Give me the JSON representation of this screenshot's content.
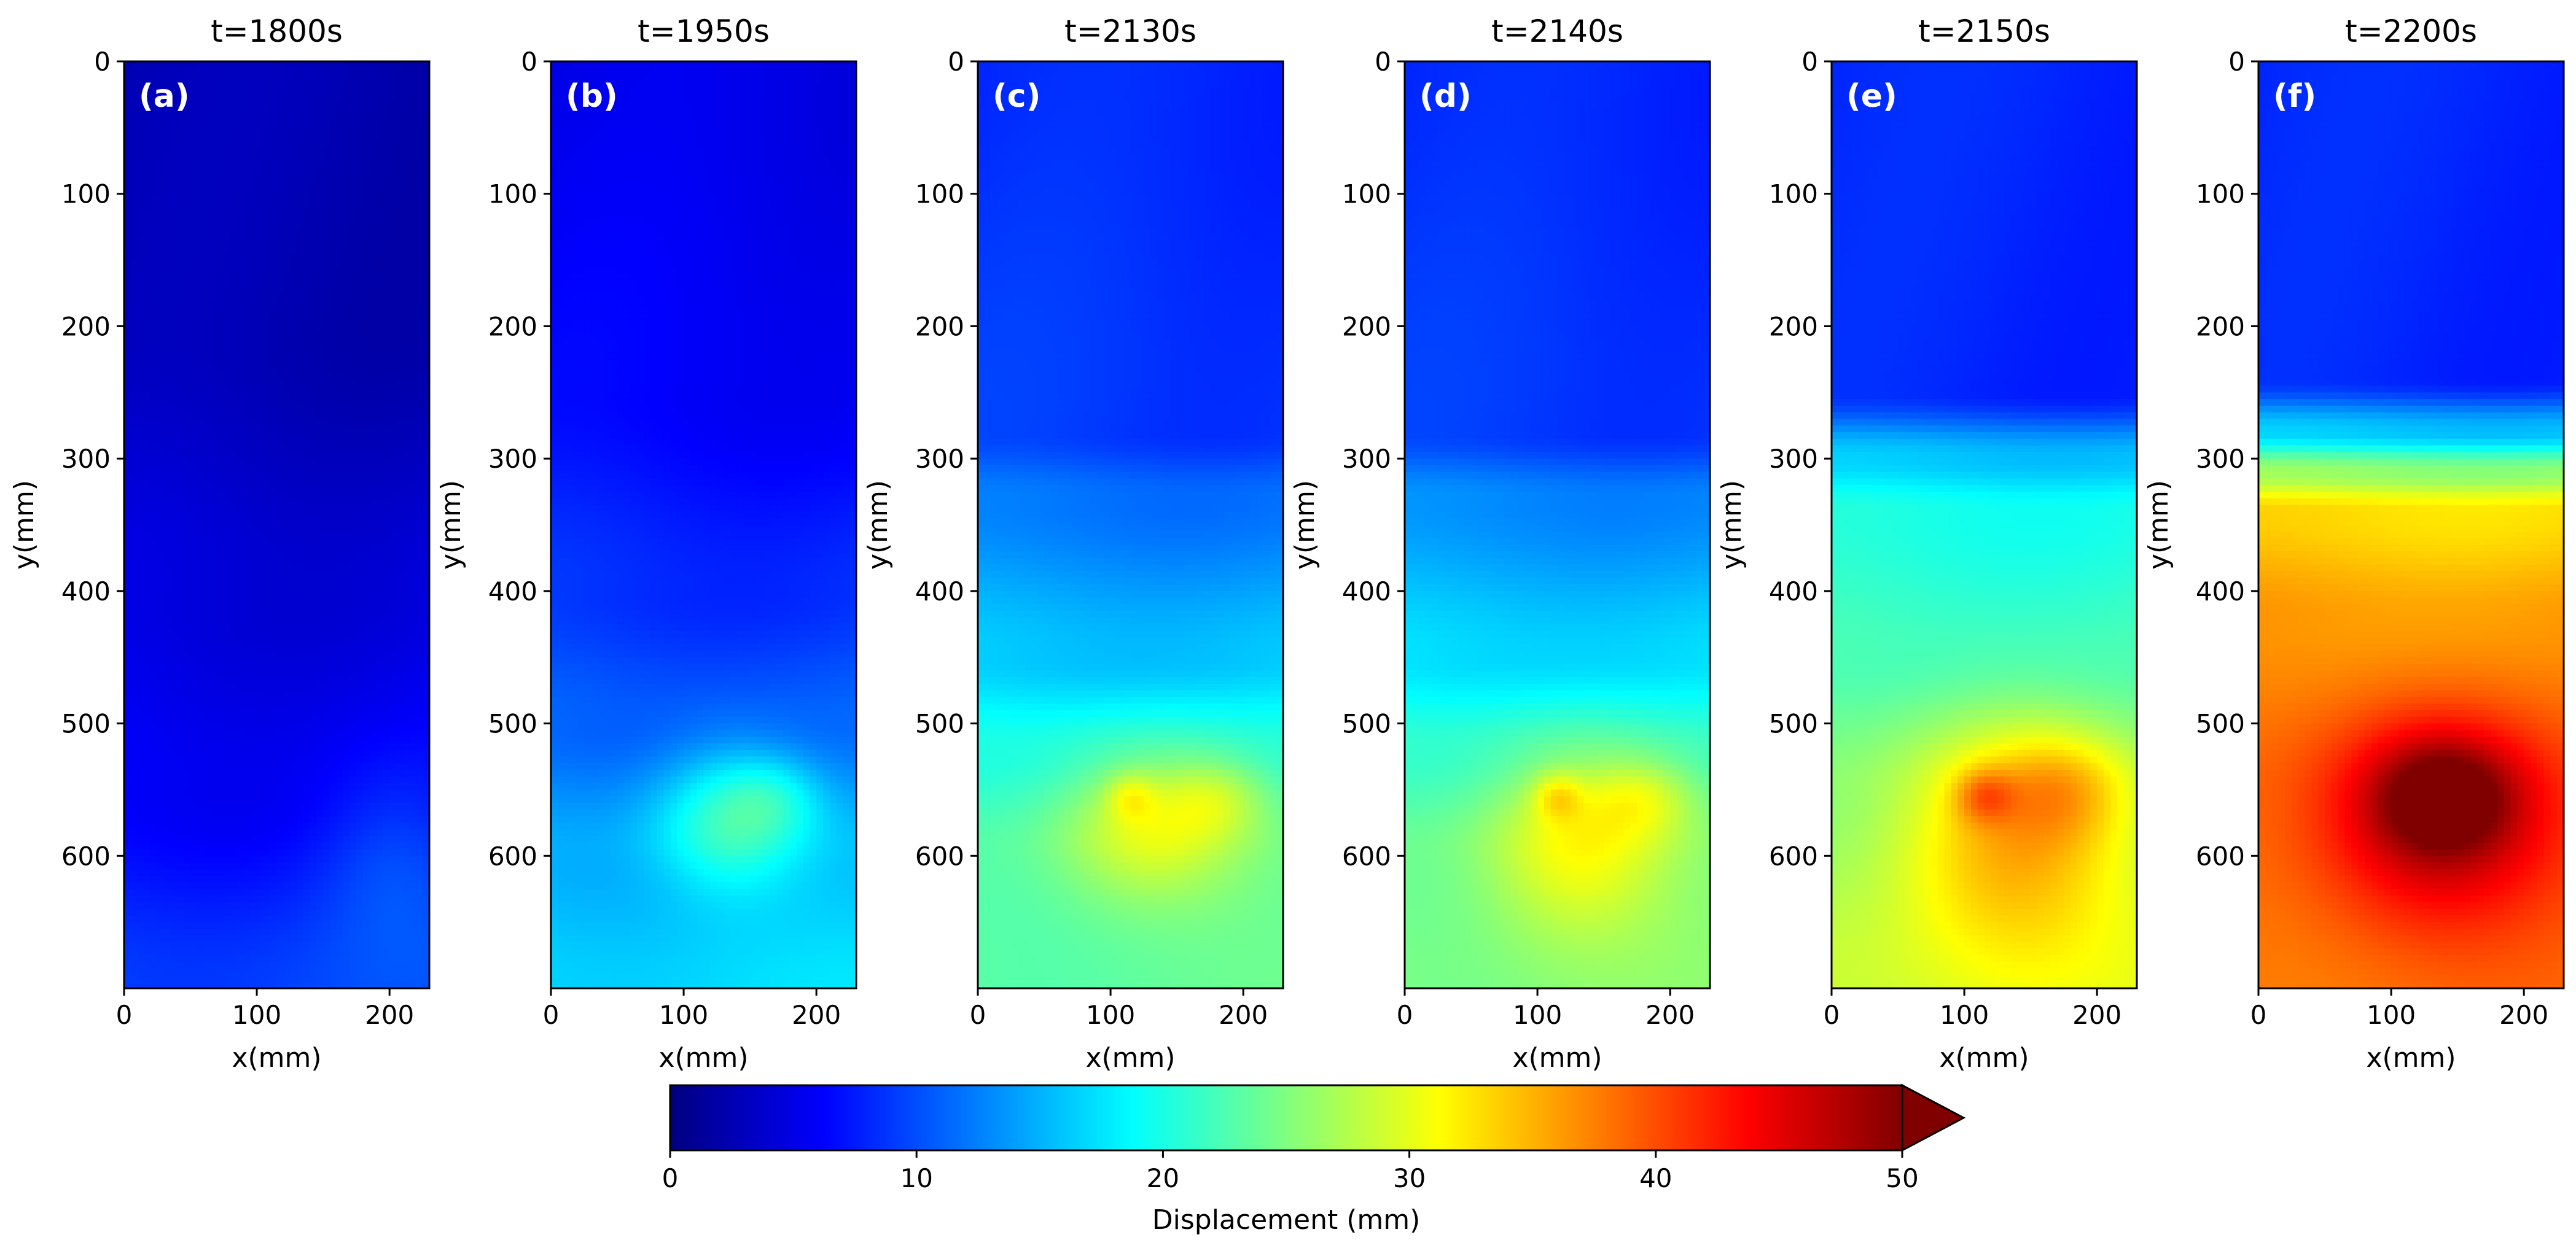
{
  "chart_data": {
    "type": "heatmap",
    "colormap": "jet",
    "x_range": [
      0,
      230
    ],
    "y_range": [
      0,
      700
    ],
    "y_inverted": true,
    "xticks": [
      0,
      100,
      200
    ],
    "yticks": [
      0,
      100,
      200,
      300,
      400,
      500,
      600
    ],
    "xlabel": "x(mm)",
    "ylabel": "y(mm)",
    "panels": [
      {
        "title": "t=1800s",
        "tag": "(a)",
        "description": "uniformly low displacement",
        "field": {
          "base_top": 3,
          "base_bottom": 3,
          "front_y": 350,
          "front_width": 120,
          "gradient": [
            [
              0,
              2.5
            ],
            [
              200,
              2.5
            ],
            [
              400,
              4.5
            ],
            [
              550,
              6
            ],
            [
              700,
              9.5
            ]
          ],
          "blobs": [
            {
              "x": 200,
              "y": 600,
              "rx": 55,
              "ry": 70,
              "amp": 2.5
            }
          ]
        }
      },
      {
        "title": "t=1950s",
        "tag": "(b)",
        "description": "displacement begins near x=130, y=570",
        "field": {
          "gradient": [
            [
              0,
              5
            ],
            [
              250,
              6
            ],
            [
              400,
              8.5
            ],
            [
              500,
              11
            ],
            [
              600,
              15
            ],
            [
              700,
              17
            ]
          ],
          "blobs": [
            {
              "x": 135,
              "y": 570,
              "rx": 55,
              "ry": 55,
              "amp": 8
            },
            {
              "x": 170,
              "y": 555,
              "rx": 35,
              "ry": 30,
              "amp": 3
            }
          ]
        }
      },
      {
        "title": "t=2130s",
        "tag": "(c)",
        "description": "local peak forming near x=115, y=555",
        "field": {
          "gradient": [
            [
              0,
              8
            ],
            [
              280,
              9
            ],
            [
              330,
              12
            ],
            [
              450,
              16
            ],
            [
              520,
              20
            ],
            [
              600,
              23
            ],
            [
              700,
              23.5
            ]
          ],
          "blobs": [
            {
              "x": 130,
              "y": 575,
              "rx": 70,
              "ry": 60,
              "amp": 8
            },
            {
              "x": 180,
              "y": 555,
              "rx": 40,
              "ry": 30,
              "amp": 4
            },
            {
              "x": 115,
              "y": 555,
              "rx": 18,
              "ry": 18,
              "amp": 4
            }
          ]
        }
      },
      {
        "title": "t=2140s",
        "tag": "(d)",
        "description": "peak intensifies",
        "field": {
          "gradient": [
            [
              0,
              8
            ],
            [
              280,
              9
            ],
            [
              330,
              13
            ],
            [
              450,
              17
            ],
            [
              520,
              21
            ],
            [
              600,
              24
            ],
            [
              700,
              25
            ]
          ],
          "blobs": [
            {
              "x": 130,
              "y": 585,
              "rx": 70,
              "ry": 75,
              "amp": 8
            },
            {
              "x": 180,
              "y": 555,
              "rx": 40,
              "ry": 30,
              "amp": 4.5
            },
            {
              "x": 115,
              "y": 555,
              "rx": 18,
              "ry": 18,
              "amp": 5
            }
          ]
        }
      },
      {
        "title": "t=2150s",
        "tag": "(e)",
        "description": "rapid growth of the displacement zone",
        "field": {
          "gradient": [
            [
              0,
              8
            ],
            [
              250,
              8
            ],
            [
              300,
              16
            ],
            [
              340,
              20
            ],
            [
              450,
              22
            ],
            [
              550,
              25
            ],
            [
              700,
              29
            ]
          ],
          "blobs": [
            {
              "x": 135,
              "y": 580,
              "rx": 85,
              "ry": 90,
              "amp": 10
            },
            {
              "x": 175,
              "y": 550,
              "rx": 50,
              "ry": 40,
              "amp": 5
            },
            {
              "x": 115,
              "y": 555,
              "rx": 22,
              "ry": 20,
              "amp": 6
            }
          ]
        }
      },
      {
        "title": "t=2200s",
        "tag": "(f)",
        "description": "failure zone exceeds 50 mm",
        "field": {
          "gradient": [
            [
              0,
              8
            ],
            [
              240,
              8
            ],
            [
              280,
              16
            ],
            [
              310,
              26
            ],
            [
              340,
              33
            ],
            [
              420,
              36
            ],
            [
              550,
              38
            ],
            [
              700,
              38
            ]
          ],
          "blobs": [
            {
              "x": 135,
              "y": 570,
              "rx": 90,
              "ry": 85,
              "amp": 10
            },
            {
              "x": 140,
              "y": 555,
              "rx": 50,
              "ry": 40,
              "amp": 8
            }
          ]
        }
      }
    ],
    "colorbar": {
      "label": "Displacement (mm)",
      "range": [
        0,
        50
      ],
      "ticks": [
        0,
        10,
        20,
        30,
        40,
        50
      ],
      "extend": "max",
      "extend_color": "#800000"
    }
  }
}
